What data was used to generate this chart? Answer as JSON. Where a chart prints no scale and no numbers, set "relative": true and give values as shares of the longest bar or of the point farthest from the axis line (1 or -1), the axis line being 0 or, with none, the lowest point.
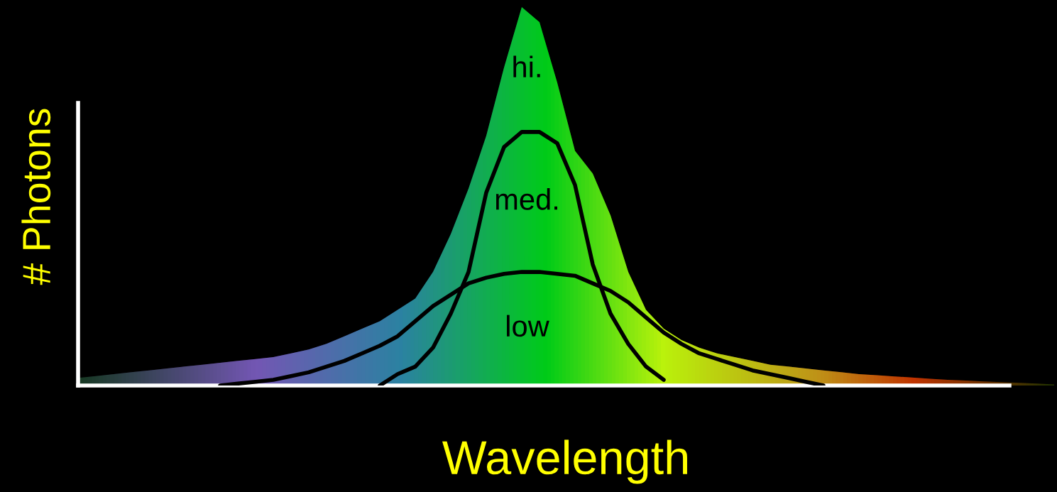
{
  "chart_data": {
    "type": "line",
    "relative": true,
    "xlabel": "Wavelength",
    "ylabel": "# Photons",
    "legend": false,
    "marker": "none",
    "line_style": "solid",
    "categories": [
      null,
      null,
      null,
      null,
      null,
      null,
      null,
      null,
      null,
      null,
      null,
      null,
      null,
      null,
      null,
      null,
      null,
      null,
      null,
      null,
      null,
      null,
      null,
      null,
      null,
      null,
      null,
      null,
      null,
      null,
      null,
      null,
      null,
      null,
      null,
      null,
      null,
      null,
      null,
      null,
      null,
      null,
      null,
      null,
      null,
      null,
      null,
      null,
      null,
      null,
      null,
      null,
      null,
      null,
      null,
      null
    ],
    "series": [
      {
        "name": "hi.",
        "type": "area",
        "color": "#00cc00",
        "values": [
          0.02,
          0.025,
          0.03,
          0.035,
          0.04,
          0.045,
          0.05,
          0.055,
          0.06,
          0.065,
          0.07,
          0.075,
          0.085,
          0.095,
          0.11,
          0.13,
          0.15,
          0.17,
          0.2,
          0.23,
          0.3,
          0.4,
          0.52,
          0.66,
          0.84,
          1.0,
          0.96,
          0.8,
          0.62,
          0.56,
          0.45,
          0.3,
          0.2,
          0.15,
          0.12,
          0.1,
          0.085,
          0.075,
          0.065,
          0.055,
          0.05,
          0.045,
          0.04,
          0.035,
          0.03,
          0.027,
          0.024,
          0.021,
          0.018,
          0.015,
          0.013,
          0.011,
          0.009,
          0.007,
          0.005,
          0.003
        ]
      },
      {
        "name": "med.",
        "color": "#000000",
        "values": [
          null,
          null,
          null,
          null,
          null,
          null,
          null,
          null,
          null,
          null,
          null,
          null,
          null,
          null,
          null,
          null,
          null,
          0.0,
          0.03,
          0.05,
          0.1,
          0.19,
          0.3,
          0.51,
          0.63,
          0.67,
          0.67,
          0.64,
          0.53,
          0.32,
          0.19,
          0.11,
          0.05,
          0.015,
          null,
          null,
          null,
          null,
          null,
          null,
          null,
          null,
          null,
          null,
          null,
          null,
          null,
          null,
          null,
          null,
          null,
          null,
          null,
          null,
          null,
          null
        ]
      },
      {
        "name": "low",
        "color": "#000000",
        "values": [
          null,
          null,
          null,
          null,
          null,
          null,
          null,
          null,
          0.0,
          0.005,
          0.01,
          0.015,
          0.025,
          0.035,
          0.05,
          0.065,
          0.085,
          0.105,
          0.13,
          0.17,
          0.21,
          0.24,
          0.27,
          0.285,
          0.295,
          0.3,
          0.3,
          0.295,
          0.29,
          0.27,
          0.25,
          0.22,
          0.18,
          0.14,
          0.11,
          0.085,
          0.07,
          0.055,
          0.04,
          0.03,
          0.02,
          0.01,
          0.0,
          null,
          null,
          null,
          null,
          null,
          null,
          null,
          null,
          null,
          null,
          null,
          null,
          null
        ]
      }
    ]
  }
}
